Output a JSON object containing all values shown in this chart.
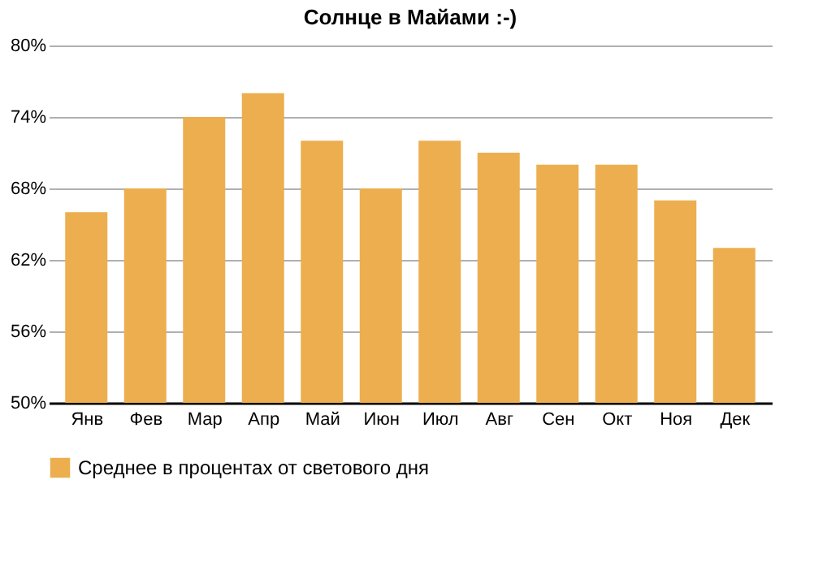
{
  "chart_data": {
    "type": "bar",
    "title": "Солнце в Майами :-)",
    "categories": [
      "Янв",
      "Фев",
      "Мар",
      "Апр",
      "Май",
      "Июн",
      "Июл",
      "Авг",
      "Сен",
      "Окт",
      "Ноя",
      "Дек"
    ],
    "series": [
      {
        "name": "Среднее в процентах от светового дня",
        "color": "#ecae4e",
        "values": [
          66,
          68,
          74,
          76,
          72,
          68,
          72,
          71,
          70,
          70,
          67,
          63
        ]
      }
    ],
    "ylim": [
      50,
      80
    ],
    "yticks": [
      {
        "value": 50,
        "label": "50%"
      },
      {
        "value": 56,
        "label": "56%"
      },
      {
        "value": 62,
        "label": "62%"
      },
      {
        "value": 68,
        "label": "68%"
      },
      {
        "value": 74,
        "label": "74%"
      },
      {
        "value": 80,
        "label": "80%"
      }
    ],
    "grid": "y",
    "legend": "bottom"
  }
}
